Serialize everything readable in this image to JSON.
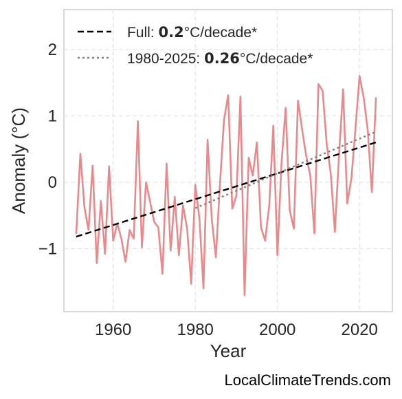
{
  "chart_data": {
    "type": "line",
    "title": "",
    "xlabel": "Year",
    "ylabel": "Anomaly (°C)",
    "xlim": [
      1948,
      2028
    ],
    "ylim": [
      -1.95,
      2.6
    ],
    "xticks": [
      1960,
      1980,
      2000,
      2020
    ],
    "yticks": [
      -1,
      0,
      1,
      2
    ],
    "ytick_labels": [
      "−1",
      "0",
      "1",
      "2"
    ],
    "grid": true,
    "legend_position": "top-left",
    "series": [
      {
        "x": [
          1951,
          1952,
          1953,
          1954,
          1955,
          1956,
          1957,
          1958,
          1959,
          1960,
          1961,
          1962,
          1963,
          1964,
          1965,
          1966,
          1967,
          1968,
          1969,
          1970,
          1971,
          1972,
          1973,
          1974,
          1975,
          1976,
          1977,
          1978,
          1979,
          1980,
          1981,
          1982,
          1983,
          1984,
          1985,
          1986,
          1987,
          1988,
          1989,
          1990,
          1991,
          1992,
          1993,
          1994,
          1995,
          1996,
          1997,
          1998,
          1999,
          2000,
          2001,
          2002,
          2003,
          2004,
          2005,
          2006,
          2007,
          2008,
          2009,
          2010,
          2011,
          2012,
          2013,
          2014,
          2015,
          2016,
          2017,
          2018,
          2019,
          2020,
          2021,
          2022,
          2023,
          2024
        ],
        "values": [
          -0.78,
          0.43,
          -0.38,
          -0.72,
          0.25,
          -1.22,
          -0.28,
          -1.08,
          0.24,
          -0.88,
          -0.62,
          -0.85,
          -1.2,
          -0.72,
          -0.85,
          0.92,
          -0.98,
          0.0,
          -0.3,
          -0.6,
          -0.68,
          -1.38,
          0.28,
          -1.03,
          -0.22,
          -1.1,
          -0.35,
          -0.7,
          -1.53,
          -0.04,
          -0.55,
          -1.6,
          0.64,
          -0.55,
          -1.13,
          -0.04,
          0.94,
          1.31,
          -0.4,
          -0.2,
          1.29,
          -1.7,
          0.37,
          0.1,
          0.6,
          -0.68,
          -0.88,
          -0.35,
          0.85,
          -1.1,
          0.3,
          1.12,
          -0.42,
          -0.7,
          1.23,
          0.8,
          0.4,
          0.1,
          -0.77,
          1.48,
          1.38,
          0.58,
          0.12,
          -0.75,
          0.4,
          1.4,
          -0.32,
          0.05,
          0.8,
          1.6,
          1.28,
          0.78,
          -0.15,
          1.28
        ],
        "color": "#e88a8c"
      },
      {
        "name": "Full: 0.2°C/decade*",
        "style": "dashed",
        "color": "#000000",
        "x": [
          1951,
          2024
        ],
        "values": [
          -0.82,
          0.6
        ]
      },
      {
        "name": "1980-2025: 0.26°C/decade*",
        "style": "dotted",
        "color": "#808080",
        "x": [
          1980,
          2024
        ],
        "values": [
          -0.39,
          0.76
        ]
      }
    ],
    "legend": [
      {
        "prefix": "Full: ",
        "bold": "0.2",
        "suffix": "°C/decade*",
        "style": "dashed",
        "color": "#000000"
      },
      {
        "prefix": "1980-2025: ",
        "bold": "0.26",
        "suffix": "°C/decade*",
        "style": "dotted",
        "color": "#808080"
      }
    ]
  },
  "watermark": "LocalClimateTrends.com"
}
